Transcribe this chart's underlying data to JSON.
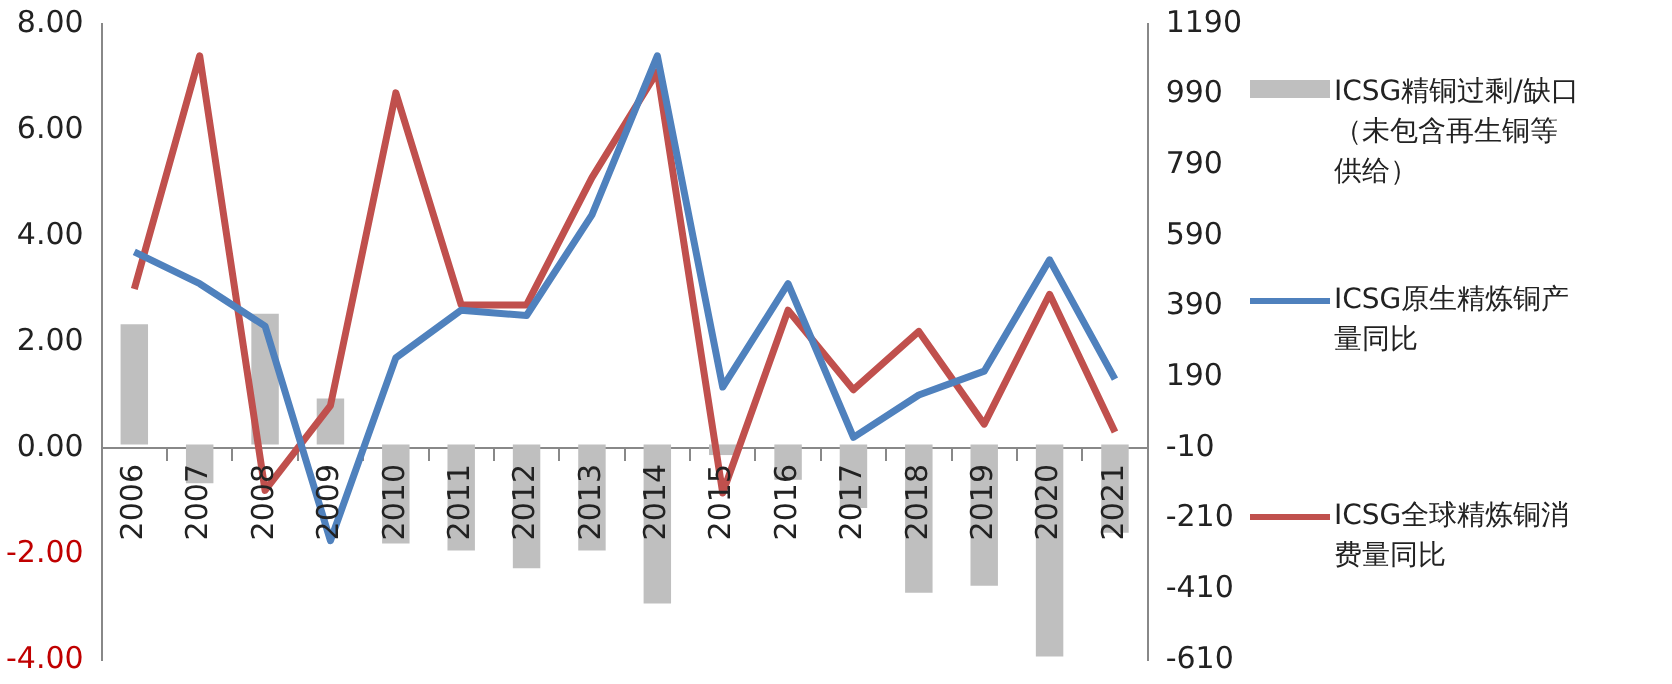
{
  "chart_data": {
    "type": "bar",
    "categories": [
      "2006",
      "2007",
      "2008",
      "2009",
      "2010",
      "2011",
      "2012",
      "2013",
      "2014",
      "2015",
      "2016",
      "2017",
      "2018",
      "2019",
      "2020",
      "2021"
    ],
    "series": [
      {
        "name": "ICSG精铜过剩/缺口（未包含再生铜等供给）",
        "type": "bar",
        "axis": "y2",
        "color": "#bfbfbf",
        "values": [
          340,
          -110,
          370,
          130,
          -280,
          -300,
          -350,
          -300,
          -450,
          -30,
          -100,
          -180,
          -420,
          -400,
          -600,
          -250
        ]
      },
      {
        "name": "ICSG原生精炼铜产量同比",
        "type": "line",
        "axis": "y",
        "color": "#4f81bd",
        "values": [
          3.7,
          3.1,
          2.3,
          -1.75,
          1.7,
          2.6,
          2.5,
          4.4,
          7.4,
          1.15,
          3.1,
          0.2,
          1.0,
          1.45,
          3.55,
          1.3
        ]
      },
      {
        "name": "ICSG全球精炼铜消费量同比",
        "type": "line",
        "axis": "y",
        "color": "#c0504d",
        "values": [
          3.0,
          7.4,
          -0.8,
          0.8,
          6.7,
          2.7,
          2.7,
          5.1,
          7.1,
          -0.85,
          2.6,
          1.1,
          2.2,
          0.45,
          2.9,
          0.3
        ]
      }
    ],
    "ylim": [
      -4,
      8
    ],
    "yticks": [
      {
        "value": -4,
        "label": "-4.00"
      },
      {
        "value": -2,
        "label": "-2.00"
      },
      {
        "value": 0,
        "label": "0.00"
      },
      {
        "value": 2,
        "label": "2.00"
      },
      {
        "value": 4,
        "label": "4.00"
      },
      {
        "value": 6,
        "label": "6.00"
      },
      {
        "value": 8,
        "label": "8.00"
      }
    ],
    "y2lim": [
      -610,
      1190
    ],
    "y2ticks": [
      -610,
      -410,
      -210,
      -10,
      190,
      390,
      590,
      790,
      990,
      1190
    ],
    "grid": false,
    "legend": "right",
    "marker": "none",
    "line_style": "solid"
  }
}
